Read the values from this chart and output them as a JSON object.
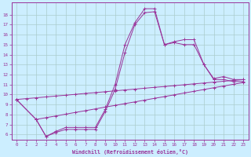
{
  "xlabel": "Windchill (Refroidissement éolien,°C)",
  "bg_color": "#cceeff",
  "grid_color": "#aacccc",
  "line_color": "#993399",
  "xlim": [
    -0.5,
    23.5
  ],
  "ylim": [
    5.5,
    19.2
  ],
  "xticks": [
    0,
    1,
    2,
    3,
    4,
    5,
    6,
    7,
    8,
    9,
    10,
    11,
    12,
    13,
    14,
    15,
    16,
    17,
    18,
    19,
    20,
    21,
    22,
    23
  ],
  "yticks": [
    6,
    7,
    8,
    9,
    10,
    11,
    12,
    13,
    14,
    15,
    16,
    17,
    18
  ],
  "line1": {
    "x": [
      0,
      2,
      3,
      4,
      5,
      6,
      7,
      8,
      9,
      10,
      11,
      12,
      13,
      14,
      15,
      16,
      17,
      18,
      19,
      20,
      21,
      22,
      23
    ],
    "y": [
      9.5,
      7.5,
      5.8,
      6.3,
      6.7,
      6.7,
      6.7,
      6.7,
      8.5,
      11.0,
      15.0,
      17.2,
      18.6,
      18.6,
      15.0,
      15.3,
      15.5,
      15.5,
      13.0,
      11.6,
      11.8,
      11.5,
      11.5
    ]
  },
  "line2": {
    "x": [
      0,
      2,
      3,
      4,
      5,
      6,
      7,
      8,
      9,
      10,
      11,
      12,
      13,
      14,
      15,
      16,
      17,
      18,
      19,
      20,
      21,
      22,
      23
    ],
    "y": [
      9.5,
      7.5,
      5.8,
      6.2,
      6.5,
      6.5,
      6.5,
      6.5,
      8.3,
      10.5,
      14.2,
      17.0,
      18.2,
      18.3,
      15.0,
      15.2,
      15.0,
      15.0,
      13.0,
      11.5,
      11.5,
      11.3,
      11.3
    ]
  },
  "line3": {
    "x": [
      0,
      1,
      2,
      3,
      4,
      5,
      6,
      7,
      8,
      9,
      10,
      11,
      12,
      13,
      14,
      15,
      16,
      17,
      18,
      19,
      20,
      21,
      22,
      23
    ],
    "y": [
      9.5,
      9.59,
      9.67,
      9.76,
      9.85,
      9.93,
      10.02,
      10.11,
      10.19,
      10.28,
      10.37,
      10.46,
      10.54,
      10.63,
      10.72,
      10.8,
      10.89,
      10.98,
      11.07,
      11.15,
      11.24,
      11.33,
      11.41,
      11.5
    ]
  },
  "line4": {
    "x": [
      2,
      3,
      4,
      5,
      6,
      7,
      8,
      9,
      10,
      11,
      12,
      13,
      14,
      15,
      16,
      17,
      18,
      19,
      20,
      21,
      22,
      23
    ],
    "y": [
      7.5,
      7.68,
      7.85,
      8.03,
      8.21,
      8.38,
      8.56,
      8.74,
      8.91,
      9.09,
      9.26,
      9.44,
      9.62,
      9.79,
      9.97,
      10.15,
      10.32,
      10.5,
      10.68,
      10.85,
      11.03,
      11.2
    ]
  }
}
